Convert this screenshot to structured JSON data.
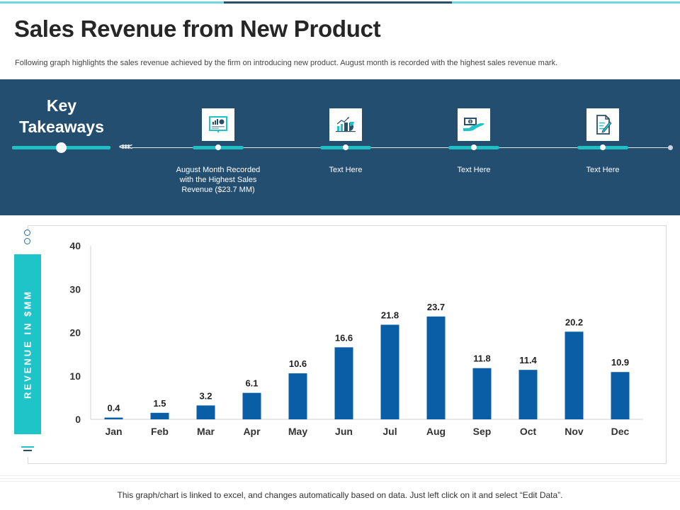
{
  "header": {
    "title": "Sales Revenue from New Product",
    "subtitle": "Following graph highlights the sales revenue achieved by the firm on introducing new product. August month is recorded with the highest sales revenue mark."
  },
  "takeaways": {
    "title_line1": "Key",
    "title_line2": "Takeaways",
    "chevrons": "<<<<",
    "items": [
      {
        "icon": "presentation-chart-icon",
        "label": "August Month Recorded with the Highest Sales Revenue ($23.7 MM)"
      },
      {
        "icon": "growth-chart-icon",
        "label": "Text Here"
      },
      {
        "icon": "money-hand-icon",
        "label": "Text Here"
      },
      {
        "icon": "document-edit-icon",
        "label": "Text Here"
      }
    ]
  },
  "colors": {
    "band": "#244e6f",
    "accent_teal": "#1fc4c8",
    "bar": "#0a5ea5"
  },
  "chart_data": {
    "type": "bar",
    "title": "",
    "xlabel": "",
    "ylabel": "REVENUE IN $MM",
    "ylim": [
      0,
      40
    ],
    "yticks": [
      0,
      10,
      20,
      30,
      40
    ],
    "grid": false,
    "legend": "none",
    "categories": [
      "Jan",
      "Feb",
      "Mar",
      "Apr",
      "May",
      "Jun",
      "Jul",
      "Aug",
      "Sep",
      "Oct",
      "Nov",
      "Dec"
    ],
    "values": [
      0.4,
      1.5,
      3.2,
      6.1,
      10.6,
      16.6,
      21.8,
      23.7,
      11.8,
      11.4,
      20.2,
      10.9
    ],
    "data_labels": [
      "0.4",
      "1.5",
      "3.2",
      "6.1",
      "10.6",
      "16.6",
      "21.8",
      "23.7",
      "11.8",
      "11.4",
      "20.2",
      "10.9"
    ]
  },
  "footer": {
    "note": "This graph/chart is linked to excel, and changes automatically based on data. Just left click on it and select “Edit Data”."
  }
}
